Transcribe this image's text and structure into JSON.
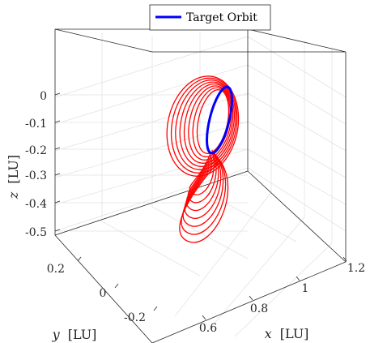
{
  "chart_data": {
    "type": "line",
    "projection": "3d",
    "legend": {
      "entries": [
        "Target Orbit"
      ],
      "placement": "top-center"
    },
    "series": [
      {
        "name": "Target Orbit",
        "color": "#0000ff",
        "role": "target-orbit"
      },
      {
        "color": "#ff0000",
        "role": "transfer-trajectory"
      }
    ],
    "axes": {
      "x": {
        "label_var": "x",
        "label_unit": "[LU]",
        "ticks": [
          "0.6",
          "0.8",
          "1",
          "1.2"
        ],
        "tick_values": [
          0.6,
          0.8,
          1.0,
          1.2
        ],
        "range": [
          0.5,
          1.3
        ]
      },
      "y": {
        "label_var": "y",
        "label_unit": "[LU]",
        "ticks": [
          "0.2",
          "0",
          "-0.2"
        ],
        "tick_values": [
          0.2,
          0.0,
          -0.2
        ],
        "range": [
          -0.3,
          0.3
        ]
      },
      "z": {
        "label_var": "z",
        "label_unit": "[LU]",
        "ticks": [
          "0",
          "-0.1",
          "-0.2",
          "-0.3",
          "-0.4",
          "-0.5"
        ],
        "tick_values": [
          0,
          -0.1,
          -0.2,
          -0.3,
          -0.4,
          -0.5
        ],
        "range": [
          -0.55,
          0.05
        ]
      }
    },
    "grid": true
  }
}
